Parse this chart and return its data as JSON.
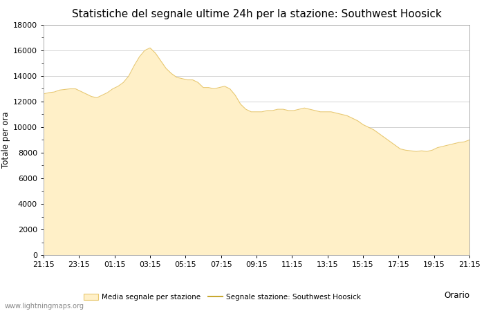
{
  "title": "Statistiche del segnale ultime 24h per la stazione: Southwest Hoosick",
  "xlabel": "Orario",
  "ylabel": "Totale per ora",
  "ylim": [
    0,
    18000
  ],
  "yticks": [
    0,
    2000,
    4000,
    6000,
    8000,
    10000,
    12000,
    14000,
    16000,
    18000
  ],
  "x_labels": [
    "21:15",
    "23:15",
    "01:15",
    "03:15",
    "05:15",
    "07:15",
    "09:15",
    "11:15",
    "13:15",
    "15:15",
    "17:15",
    "19:15",
    "21:15"
  ],
  "fill_color": "#FFF0C8",
  "fill_edge_color": "#E8C870",
  "line_color": "#C8A830",
  "background_color": "#ffffff",
  "grid_color": "#cccccc",
  "title_fontsize": 11,
  "axis_fontsize": 8.5,
  "tick_fontsize": 8,
  "legend_label_fill": "Media segnale per stazione",
  "legend_label_line": "Segnale stazione: Southwest Hoosick",
  "watermark": "www.lightningmaps.org",
  "y_values": [
    12600,
    12700,
    12750,
    12900,
    12950,
    13000,
    13000,
    12800,
    12600,
    12400,
    12300,
    12500,
    12700,
    13000,
    13200,
    13500,
    14000,
    14800,
    15500,
    16000,
    16200,
    15800,
    15200,
    14600,
    14200,
    13900,
    13800,
    13700,
    13700,
    13500,
    13100,
    13100,
    13000,
    13100,
    13200,
    13000,
    12500,
    11800,
    11400,
    11200,
    11200,
    11200,
    11300,
    11300,
    11400,
    11400,
    11300,
    11300,
    11400,
    11500,
    11400,
    11300,
    11200,
    11200,
    11200,
    11100,
    11000,
    10900,
    10700,
    10500,
    10200,
    10000,
    9800,
    9500,
    9200,
    8900,
    8600,
    8300,
    8200,
    8150,
    8100,
    8150,
    8100,
    8200,
    8400,
    8500,
    8600,
    8700,
    8800,
    8850,
    9000
  ]
}
